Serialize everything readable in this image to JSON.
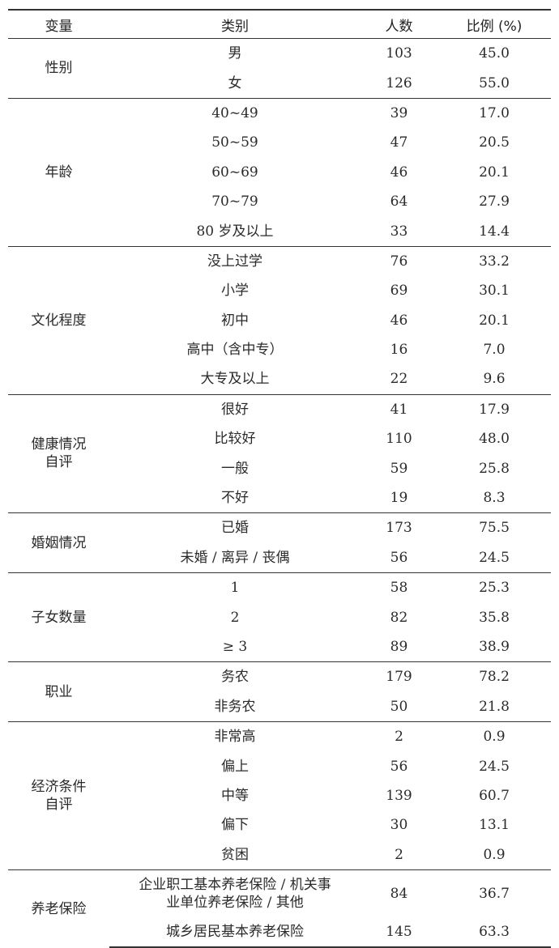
{
  "headers": [
    "变量",
    "类别",
    "人数",
    "比例 (%)"
  ],
  "groups": [
    {
      "variable": "性别",
      "rows": [
        [
          "男",
          "103",
          "45.0"
        ],
        [
          "女",
          "126",
          "55.0"
        ]
      ]
    },
    {
      "variable": "年龄",
      "rows": [
        [
          "40~49",
          "39",
          "17.0"
        ],
        [
          "50~59",
          "47",
          "20.5"
        ],
        [
          "60~69",
          "46",
          "20.1"
        ],
        [
          "70~79",
          "64",
          "27.9"
        ],
        [
          "80 岁及以上",
          "33",
          "14.4"
        ]
      ]
    },
    {
      "variable": "文化程度",
      "rows": [
        [
          "没上过学",
          "76",
          "33.2"
        ],
        [
          "小学",
          "69",
          "30.1"
        ],
        [
          "初中",
          "46",
          "20.1"
        ],
        [
          "高中（含中专）",
          "16",
          "7.0"
        ],
        [
          "大专及以上",
          "22",
          "9.6"
        ]
      ]
    },
    {
      "variable": "健康情况\n自评",
      "rows": [
        [
          "很好",
          "41",
          "17.9"
        ],
        [
          "比较好",
          "110",
          "48.0"
        ],
        [
          "一般",
          "59",
          "25.8"
        ],
        [
          "不好",
          "19",
          "8.3"
        ]
      ]
    },
    {
      "variable": "婚姻情况",
      "rows": [
        [
          "已婚",
          "173",
          "75.5"
        ],
        [
          "未婚 / 离异 / 丧偶",
          "56",
          "24.5"
        ]
      ]
    },
    {
      "variable": "子女数量",
      "rows": [
        [
          "1",
          "58",
          "25.3"
        ],
        [
          "2",
          "82",
          "35.8"
        ],
        [
          "≥ 3",
          "89",
          "38.9"
        ]
      ]
    },
    {
      "variable": "职业",
      "rows": [
        [
          "务农",
          "179",
          "78.2"
        ],
        [
          "非务农",
          "50",
          "21.8"
        ]
      ]
    },
    {
      "variable": "经济条件\n自评",
      "rows": [
        [
          "非常高",
          "2",
          "0.9"
        ],
        [
          "偏上",
          "56",
          "24.5"
        ],
        [
          "中等",
          "139",
          "60.7"
        ],
        [
          "偏下",
          "30",
          "13.1"
        ],
        [
          "贫困",
          "2",
          "0.9"
        ]
      ]
    },
    {
      "variable": "养老保险",
      "rows": [
        [
          "企业职工基本养老保险 / 机关事\n业单位养老保险 / 其他",
          "84",
          "36.7"
        ],
        [
          "城乡居民基本养老保险",
          "145",
          "63.3"
        ]
      ]
    }
  ]
}
